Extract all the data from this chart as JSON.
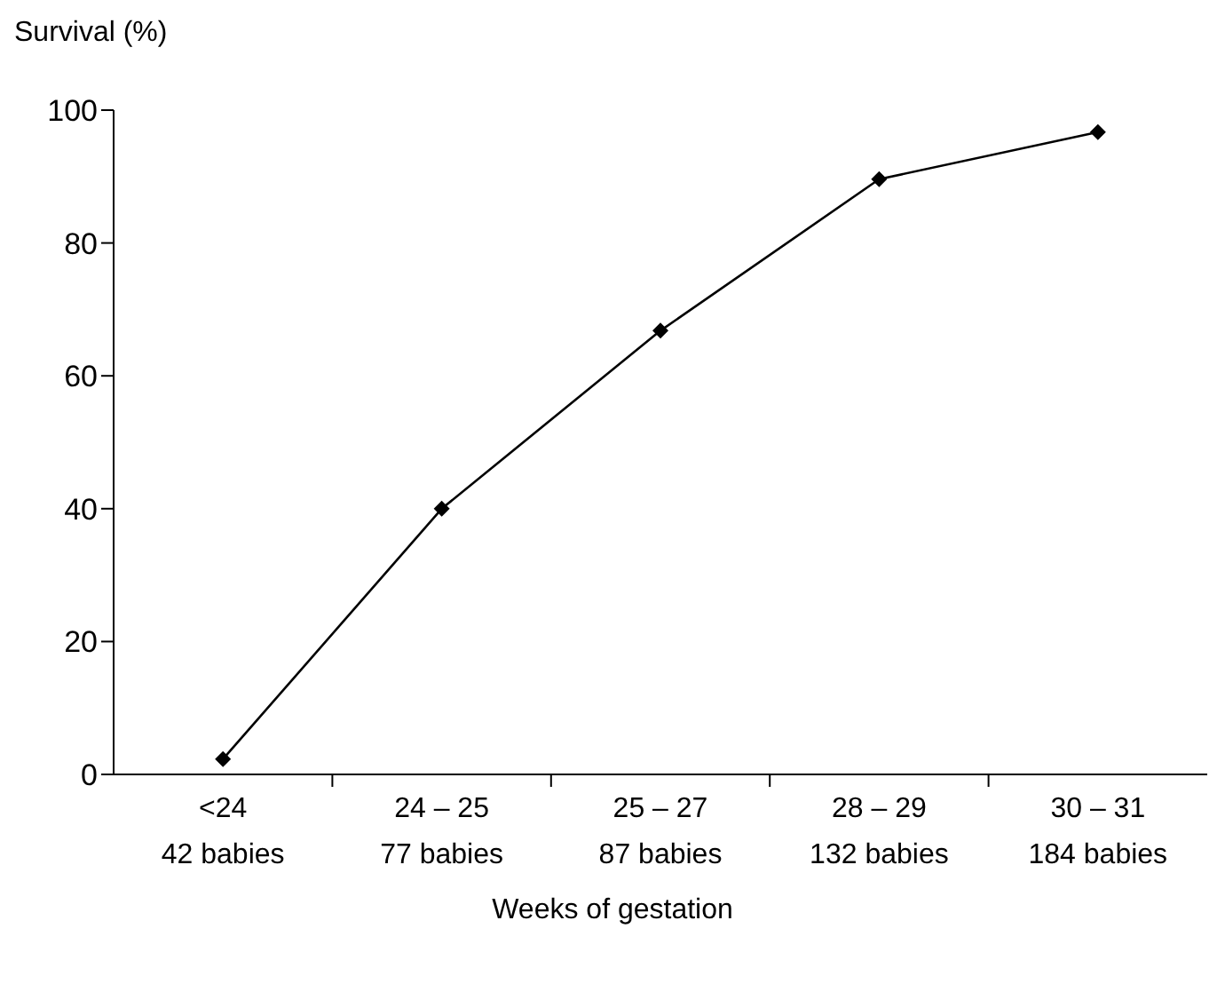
{
  "chart_data": {
    "type": "line",
    "ylabel": "Survival (%)",
    "xlabel": "Weeks of gestation",
    "categories": [
      "<24\n42 babies",
      "24 – 25\n77 babies",
      "25 – 27\n87 babies",
      "28 – 29\n132 babies",
      "30 – 31\n184 babies"
    ],
    "series": [
      {
        "color": "#000000",
        "values": [
          2.3,
          40,
          66.8,
          89.6,
          96.7
        ]
      }
    ],
    "ylim": [
      0,
      100
    ],
    "yticks": [
      0,
      20,
      40,
      60,
      80,
      100
    ],
    "marker": "diamond",
    "line_style": "solid"
  }
}
